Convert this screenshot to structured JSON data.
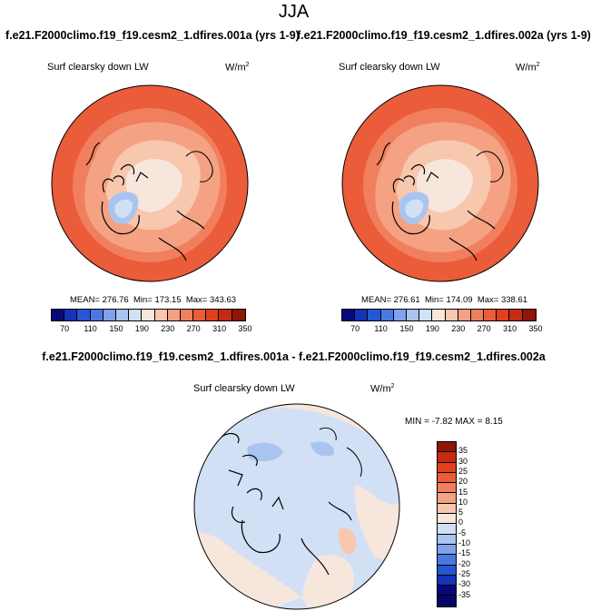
{
  "figure": {
    "season": "JJA"
  },
  "panels": [
    {
      "case_title": "f.e21.F2000climo.f19_f19.cesm2_1.dfires.001a (yrs 1-9)",
      "variable": "Surf clearsky down LW",
      "units_base": "W/m",
      "units_exp": "2",
      "mean_label": "MEAN= 276.76",
      "min_label": "Min= 173.15",
      "max_label": "Max= 343.63"
    },
    {
      "case_title": "f.e21.F2000climo.f19_f19.cesm2_1.dfires.002a (yrs 1-9)",
      "variable": "Surf clearsky down LW",
      "units_base": "W/m",
      "units_exp": "2",
      "mean_label": "MEAN= 276.61",
      "min_label": "Min= 174.09",
      "max_label": "Max= 338.61"
    }
  ],
  "diff_panel": {
    "title": "f.e21.F2000climo.f19_f19.cesm2_1.dfires.001a - f.e21.F2000climo.f19_f19.cesm2_1.dfires.002a",
    "variable": "Surf clearsky down LW",
    "units_base": "W/m",
    "units_exp": "2",
    "minmax_label": "MIN = -7.82 MAX = 8.15"
  },
  "colorbar_abs": {
    "ticks": [
      "70",
      "110",
      "150",
      "190",
      "230",
      "270",
      "310",
      "350"
    ],
    "colors": [
      "#08087a",
      "#1433b8",
      "#2456d6",
      "#4a78e0",
      "#7fa2ea",
      "#aac4f0",
      "#d2e0f6",
      "#f7e6dc",
      "#f7c7ae",
      "#f4a283",
      "#f07f5e",
      "#eb5c3a",
      "#e0401e",
      "#c62a10",
      "#8f1508"
    ]
  },
  "colorbar_diff": {
    "ticks": [
      "35",
      "30",
      "25",
      "20",
      "15",
      "10",
      "5",
      "0",
      "-5",
      "-10",
      "-15",
      "-20",
      "-25",
      "-30",
      "-35"
    ],
    "colors": [
      "#8f1508",
      "#c62a10",
      "#e0401e",
      "#eb5c3a",
      "#f07f5e",
      "#f4a283",
      "#f7c7ae",
      "#f7e6dc",
      "#d2e0f6",
      "#aac4f0",
      "#7fa2ea",
      "#4a78e0",
      "#2456d6",
      "#1433b8",
      "#08087a",
      "#06066a"
    ]
  }
}
